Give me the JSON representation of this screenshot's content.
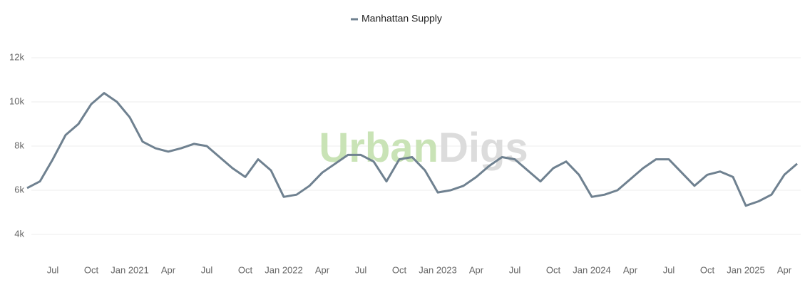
{
  "chart_data": {
    "type": "line",
    "watermark": {
      "part1": "Urban",
      "part2": "Digs"
    },
    "x": [
      "2020-05",
      "2020-06",
      "2020-07",
      "2020-08",
      "2020-09",
      "2020-10",
      "2020-11",
      "2020-12",
      "2021-01",
      "2021-02",
      "2021-03",
      "2021-04",
      "2021-05",
      "2021-06",
      "2021-07",
      "2021-08",
      "2021-09",
      "2021-10",
      "2021-11",
      "2021-12",
      "2022-01",
      "2022-02",
      "2022-03",
      "2022-04",
      "2022-05",
      "2022-06",
      "2022-07",
      "2022-08",
      "2022-09",
      "2022-10",
      "2022-11",
      "2022-12",
      "2023-01",
      "2023-02",
      "2023-03",
      "2023-04",
      "2023-05",
      "2023-06",
      "2023-07",
      "2023-08",
      "2023-09",
      "2023-10",
      "2023-11",
      "2023-12",
      "2024-01",
      "2024-02",
      "2024-03",
      "2024-04",
      "2024-05",
      "2024-06",
      "2024-07",
      "2024-08",
      "2024-09",
      "2024-10",
      "2024-11",
      "2024-12",
      "2025-01",
      "2025-02",
      "2025-03",
      "2025-04",
      "2025-05"
    ],
    "series": [
      {
        "name": "Manhattan Supply",
        "color": "#6f8190",
        "values": [
          6100,
          6400,
          7400,
          8500,
          9000,
          9900,
          10400,
          10000,
          9300,
          8200,
          7900,
          7750,
          7900,
          8100,
          8000,
          7500,
          7000,
          6600,
          7400,
          6900,
          5700,
          5800,
          6200,
          6800,
          7200,
          7600,
          7600,
          7300,
          6400,
          7400,
          7500,
          6900,
          5900,
          6000,
          6200,
          6600,
          7100,
          7500,
          7400,
          6900,
          6400,
          7000,
          7300,
          6700,
          5700,
          5800,
          6000,
          6500,
          7000,
          7400,
          7400,
          6800,
          6200,
          6700,
          6850,
          6600,
          5300,
          5500,
          5800,
          6700,
          7200
        ]
      }
    ],
    "xlim": [
      "2020-05",
      "2025-05"
    ],
    "xticks": [
      {
        "value": "2020-07",
        "label": "Jul"
      },
      {
        "value": "2020-10",
        "label": "Oct"
      },
      {
        "value": "2021-01",
        "label": "Jan 2021"
      },
      {
        "value": "2021-04",
        "label": "Apr"
      },
      {
        "value": "2021-07",
        "label": "Jul"
      },
      {
        "value": "2021-10",
        "label": "Oct"
      },
      {
        "value": "2022-01",
        "label": "Jan 2022"
      },
      {
        "value": "2022-04",
        "label": "Apr"
      },
      {
        "value": "2022-07",
        "label": "Jul"
      },
      {
        "value": "2022-10",
        "label": "Oct"
      },
      {
        "value": "2023-01",
        "label": "Jan 2023"
      },
      {
        "value": "2023-04",
        "label": "Apr"
      },
      {
        "value": "2023-07",
        "label": "Jul"
      },
      {
        "value": "2023-10",
        "label": "Oct"
      },
      {
        "value": "2024-01",
        "label": "Jan 2024"
      },
      {
        "value": "2024-04",
        "label": "Apr"
      },
      {
        "value": "2024-07",
        "label": "Jul"
      },
      {
        "value": "2024-10",
        "label": "Oct"
      },
      {
        "value": "2025-01",
        "label": "Jan 2025"
      },
      {
        "value": "2025-04",
        "label": "Apr"
      }
    ],
    "ylim": [
      3000,
      12000
    ],
    "yticks": [
      {
        "value": 4000,
        "label": "4k"
      },
      {
        "value": 6000,
        "label": "6k"
      },
      {
        "value": 8000,
        "label": "8k"
      },
      {
        "value": 10000,
        "label": "10k"
      },
      {
        "value": 12000,
        "label": "12k"
      }
    ],
    "grid": true
  }
}
